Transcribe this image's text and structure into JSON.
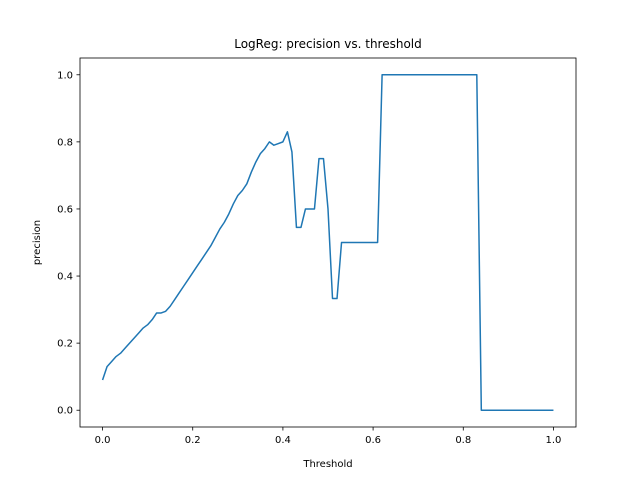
{
  "chart_data": {
    "type": "line",
    "title": "LogReg: precision vs. threshold",
    "xlabel": "Threshold",
    "ylabel": "precision",
    "xlim": [
      -0.05,
      1.05
    ],
    "ylim": [
      -0.05,
      1.05
    ],
    "xticks": [
      0.0,
      0.2,
      0.4,
      0.6,
      0.8,
      1.0
    ],
    "xtick_labels": [
      "0.0",
      "0.2",
      "0.4",
      "0.6",
      "0.8",
      "1.0"
    ],
    "yticks": [
      0.0,
      0.2,
      0.4,
      0.6,
      0.8,
      1.0
    ],
    "ytick_labels": [
      "0.0",
      "0.2",
      "0.4",
      "0.6",
      "0.8",
      "1.0"
    ],
    "grid": false,
    "series": [
      {
        "color": "#1f77b4",
        "x": [
          0.0,
          0.01,
          0.02,
          0.03,
          0.04,
          0.05,
          0.06,
          0.07,
          0.08,
          0.09,
          0.1,
          0.11,
          0.12,
          0.13,
          0.14,
          0.15,
          0.16,
          0.17,
          0.18,
          0.19,
          0.2,
          0.21,
          0.22,
          0.23,
          0.24,
          0.25,
          0.26,
          0.27,
          0.28,
          0.29,
          0.3,
          0.31,
          0.32,
          0.33,
          0.34,
          0.35,
          0.36,
          0.37,
          0.38,
          0.39,
          0.4,
          0.41,
          0.42,
          0.43,
          0.44,
          0.45,
          0.46,
          0.47,
          0.48,
          0.49,
          0.5,
          0.51,
          0.52,
          0.53,
          0.54,
          0.55,
          0.56,
          0.57,
          0.58,
          0.59,
          0.6,
          0.61,
          0.62,
          0.63,
          0.7,
          0.8,
          0.83,
          0.84,
          0.85,
          0.9,
          1.0
        ],
        "y": [
          0.09,
          0.13,
          0.145,
          0.16,
          0.17,
          0.185,
          0.2,
          0.215,
          0.23,
          0.245,
          0.255,
          0.27,
          0.29,
          0.29,
          0.295,
          0.31,
          0.33,
          0.35,
          0.37,
          0.39,
          0.41,
          0.43,
          0.45,
          0.47,
          0.49,
          0.515,
          0.54,
          0.56,
          0.585,
          0.615,
          0.64,
          0.655,
          0.675,
          0.71,
          0.74,
          0.765,
          0.78,
          0.8,
          0.79,
          0.795,
          0.8,
          0.83,
          0.77,
          0.545,
          0.545,
          0.6,
          0.6,
          0.6,
          0.75,
          0.75,
          0.6,
          0.333,
          0.333,
          0.5,
          0.5,
          0.5,
          0.5,
          0.5,
          0.5,
          0.5,
          0.5,
          0.5,
          1.0,
          1.0,
          1.0,
          1.0,
          1.0,
          0.0,
          0.0,
          0.0,
          0.0
        ]
      }
    ]
  }
}
